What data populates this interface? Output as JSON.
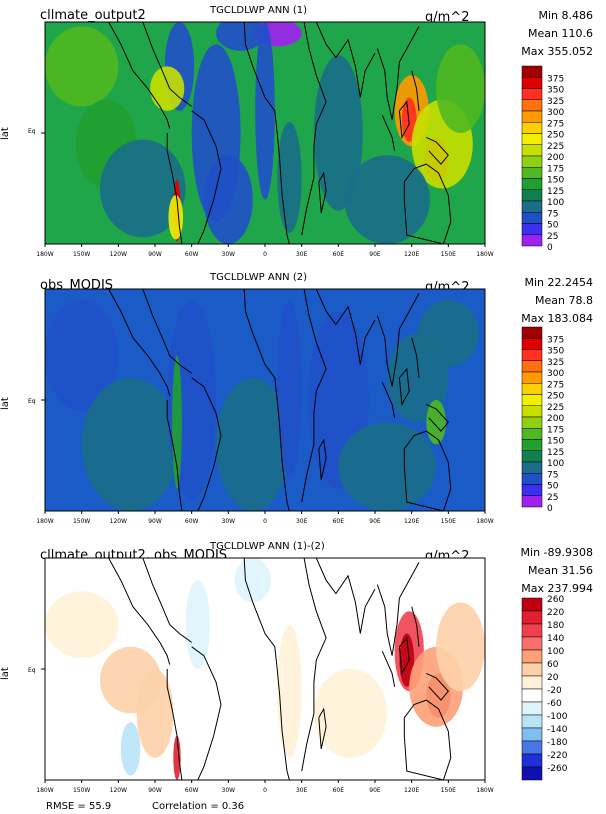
{
  "panels": [
    {
      "case": "cllmate_output2",
      "title": "TGCLDLWP ANN (1)",
      "units": "g/m^2",
      "stats": [
        "Min 8.486",
        "Mean 110.6",
        "Max 355.052"
      ],
      "ylabel": "lat",
      "eq_label": "Eq",
      "kind": "model",
      "colorbar": {
        "labels": [
          "375",
          "350",
          "325",
          "300",
          "275",
          "250",
          "225",
          "200",
          "175",
          "150",
          "125",
          "100",
          "75",
          "50",
          "25",
          "0"
        ],
        "colors": [
          "#a00000",
          "#e00000",
          "#ff3020",
          "#ff7010",
          "#ff9a00",
          "#ffd000",
          "#f0f000",
          "#c8e000",
          "#90d010",
          "#50b820",
          "#20a030",
          "#108050",
          "#1a6e8a",
          "#2050c8",
          "#3c30f0",
          "#a020f0"
        ]
      }
    },
    {
      "case": "obs_MODIS",
      "title": "TGCLDLWP ANN (2)",
      "units": "g/m^2",
      "stats": [
        "Min 22.2454",
        "Mean 78.8",
        "Max 183.084"
      ],
      "ylabel": "lat",
      "eq_label": "Eq",
      "kind": "obs",
      "colorbar": {
        "labels": [
          "375",
          "350",
          "325",
          "300",
          "275",
          "250",
          "225",
          "200",
          "175",
          "150",
          "125",
          "100",
          "75",
          "50",
          "25",
          "0"
        ],
        "colors": [
          "#a00000",
          "#e00000",
          "#ff3020",
          "#ff7010",
          "#ff9a00",
          "#ffd000",
          "#f0f000",
          "#c8e000",
          "#90d010",
          "#50b820",
          "#20a030",
          "#108050",
          "#1a6e8a",
          "#2050c8",
          "#3c30f0",
          "#a020f0"
        ]
      }
    },
    {
      "case": "cllmate_output2, obs_MODIS",
      "title": "TGCLDLWP ANN (1)-(2)",
      "units": "g/m^2",
      "stats": [
        "Min -89.9308",
        "Mean 31.56",
        "Max 237.994"
      ],
      "ylabel": "lat",
      "eq_label": "Eq",
      "kind": "diff",
      "colorbar": {
        "labels": [
          "260",
          "220",
          "180",
          "140",
          "100",
          "60",
          "20",
          "-20",
          "-60",
          "-100",
          "-140",
          "-180",
          "-220",
          "-260"
        ],
        "colors": [
          "#c00010",
          "#e02030",
          "#f04050",
          "#f87068",
          "#fca078",
          "#fdd0a8",
          "#fff2d8",
          "#ffffff",
          "#e0f4fc",
          "#b8e4f8",
          "#80c0f0",
          "#4878e8",
          "#2030d8",
          "#1010b0"
        ]
      }
    }
  ],
  "xticks": [
    "180W",
    "150W",
    "120W",
    "90W",
    "60W",
    "30W",
    "0",
    "30E",
    "60E",
    "90E",
    "120E",
    "150E",
    "180W"
  ],
  "footer": {
    "rmse": "RMSE = 55.9",
    "correlation": "Correlation = 0.36"
  },
  "chart_data": [
    {
      "type": "heatmap",
      "title": "TGCLDLWP ANN (1)",
      "xlabel": "",
      "ylabel": "lat",
      "xlim": [
        -180,
        180
      ],
      "colorbar_levels": [
        0,
        25,
        50,
        75,
        100,
        125,
        150,
        175,
        200,
        225,
        250,
        275,
        300,
        325,
        350,
        375
      ],
      "min": 8.486,
      "mean": 110.6,
      "max": 355.052
    },
    {
      "type": "heatmap",
      "title": "TGCLDLWP ANN (2)",
      "xlabel": "",
      "ylabel": "lat",
      "xlim": [
        -180,
        180
      ],
      "colorbar_levels": [
        0,
        25,
        50,
        75,
        100,
        125,
        150,
        175,
        200,
        225,
        250,
        275,
        300,
        325,
        350,
        375
      ],
      "min": 22.2454,
      "mean": 78.8,
      "max": 183.084
    },
    {
      "type": "heatmap",
      "title": "TGCLDLWP ANN (1)-(2)",
      "xlabel": "",
      "ylabel": "lat",
      "xlim": [
        -180,
        180
      ],
      "colorbar_levels": [
        -260,
        -220,
        -180,
        -140,
        -100,
        -60,
        -20,
        20,
        60,
        100,
        140,
        180,
        220,
        260
      ],
      "min": -89.9308,
      "mean": 31.56,
      "max": 237.994,
      "rmse": 55.9,
      "correlation": 0.36
    }
  ]
}
